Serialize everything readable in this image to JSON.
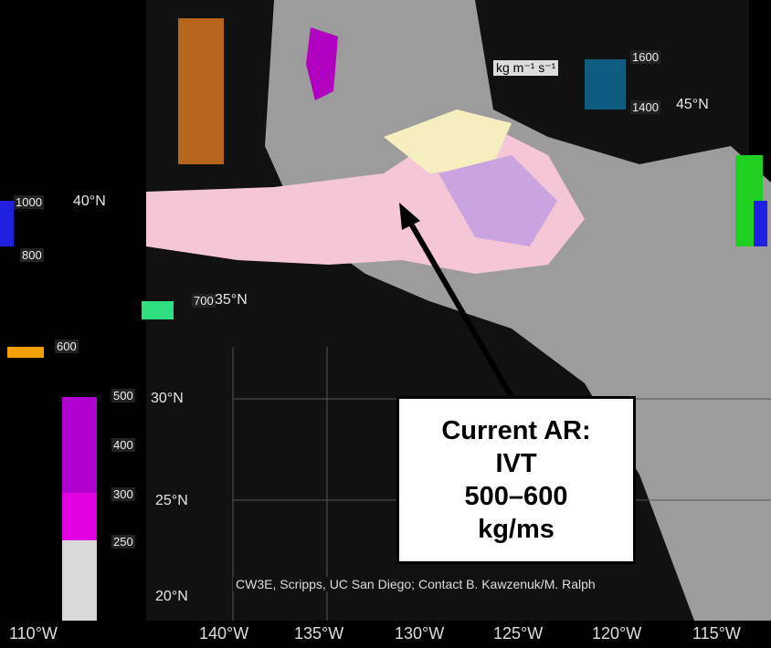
{
  "callout": {
    "lines": [
      "Current AR:",
      "IVT",
      "500–600",
      "kg/ms"
    ]
  },
  "longitudes": [
    "110°W",
    "140°W",
    "135°W",
    "130°W",
    "125°W",
    "120°W",
    "115°W"
  ],
  "latitudes": [
    "45°N",
    "40°N",
    "35°N",
    "30°N",
    "25°N",
    "20°N"
  ],
  "colorbar": {
    "units": "kg m⁻¹ s⁻¹",
    "labels": [
      "1600",
      "1400",
      "1000",
      "800",
      "700",
      "600",
      "500",
      "400",
      "300",
      "250"
    ]
  },
  "credit": "CW3E, Scripps, UC San Diego; Contact B. Kawzenuk/M. Ralph"
}
